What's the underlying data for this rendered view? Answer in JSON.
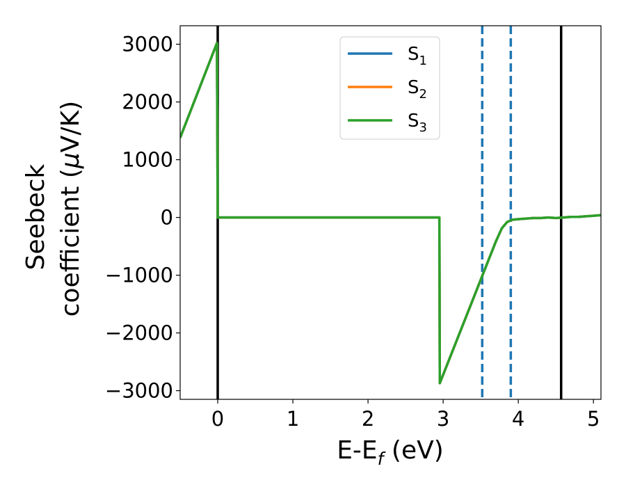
{
  "chart_data": {
    "type": "line",
    "xlabel_main": "E-E",
    "xlabel_sub": "f",
    "xlabel_unit": " (eV)",
    "ylabel_line1": "Seebeck",
    "ylabel_line2": "coefficient  (",
    "ylabel_mu": "μ",
    "ylabel_unit": "V/K)",
    "xlim": [
      -0.5,
      5.1
    ],
    "ylim": [
      -3150,
      3320
    ],
    "x_ticks": [
      0,
      1,
      2,
      3,
      4,
      5
    ],
    "x_tick_labels": [
      "0",
      "1",
      "2",
      "3",
      "4",
      "5"
    ],
    "y_ticks": [
      -3000,
      -2000,
      -1000,
      0,
      1000,
      2000,
      3000
    ],
    "y_tick_labels": [
      "−3000",
      "−2000",
      "−1000",
      "0",
      "1000",
      "2000",
      "3000"
    ],
    "grid": false,
    "legend_position": "top-center",
    "series": [
      {
        "name": "S",
        "subscript": "1",
        "color": "#1f77b4",
        "x": [
          -0.5,
          -0.01,
          0.0,
          2.95,
          2.955,
          3.5,
          3.7,
          3.78,
          3.85,
          3.92,
          4.0,
          4.1,
          4.2,
          4.3,
          4.4,
          4.5,
          4.6,
          4.7,
          4.8,
          4.9,
          5.0,
          5.1
        ],
        "y": [
          1380,
          3020,
          0,
          0,
          -2870,
          -1080,
          -420,
          -190,
          -80,
          -40,
          -30,
          -20,
          -10,
          -10,
          0,
          -10,
          0,
          10,
          10,
          20,
          30,
          40
        ]
      },
      {
        "name": "S",
        "subscript": "2",
        "color": "#ff7f0e",
        "x": [
          -0.5,
          -0.01,
          0.0,
          2.95,
          2.955,
          3.5,
          3.7,
          3.78,
          3.85,
          3.92,
          4.0,
          4.1,
          4.2,
          4.3,
          4.4,
          4.5,
          4.6,
          4.7,
          4.8,
          4.9,
          5.0,
          5.1
        ],
        "y": [
          1380,
          3020,
          0,
          0,
          -2870,
          -1080,
          -420,
          -190,
          -80,
          -40,
          -30,
          -20,
          -10,
          -10,
          0,
          -10,
          0,
          10,
          10,
          20,
          30,
          40
        ]
      },
      {
        "name": "S",
        "subscript": "3",
        "color": "#2ca02c",
        "x": [
          -0.5,
          -0.01,
          0.0,
          2.95,
          2.955,
          3.5,
          3.7,
          3.78,
          3.85,
          3.92,
          4.0,
          4.1,
          4.2,
          4.3,
          4.4,
          4.5,
          4.6,
          4.7,
          4.8,
          4.9,
          5.0,
          5.1
        ],
        "y": [
          1380,
          3020,
          0,
          0,
          -2870,
          -1080,
          -420,
          -190,
          -80,
          -40,
          -30,
          -20,
          -10,
          -10,
          0,
          -10,
          0,
          10,
          10,
          20,
          30,
          40
        ]
      }
    ],
    "vlines_solid": [
      {
        "x": 0.0,
        "color": "#000000"
      },
      {
        "x": 4.57,
        "color": "#000000"
      }
    ],
    "vlines_dashed": [
      {
        "x": 3.52,
        "color": "#1f77b4"
      },
      {
        "x": 3.9,
        "color": "#1f77b4"
      }
    ]
  }
}
